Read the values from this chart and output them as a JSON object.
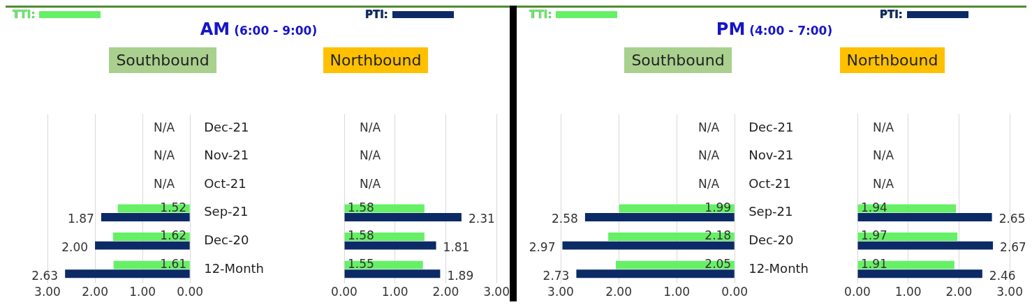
{
  "chart_data": [
    {
      "type": "bar",
      "orientation": "horizontal",
      "title": "AM (6:00 - 9:00)",
      "subtitle": "Southbound",
      "legend": "top",
      "grid": "x",
      "categories": [
        "Dec-21",
        "Nov-21",
        "Oct-21",
        "Sep-21",
        "Dec-20",
        "12-Month"
      ],
      "xlim": [
        3,
        0
      ],
      "xticks": [
        {
          "value": 3,
          "label": "3.00"
        },
        {
          "value": 2,
          "label": "2.00"
        },
        {
          "value": 1,
          "label": "1.00"
        },
        {
          "value": 0,
          "label": "0.00"
        }
      ],
      "series": [
        {
          "name": "TTI:",
          "color": "#66f066",
          "values": [
            null,
            null,
            null,
            1.52,
            1.62,
            1.61
          ],
          "value_labels": [
            "N/A",
            "N/A",
            "N/A",
            "1.52",
            "1.62",
            "1.61"
          ]
        },
        {
          "name": "PTI:",
          "color": "#0c2a66",
          "values": [
            null,
            null,
            null,
            1.87,
            2.0,
            2.63
          ],
          "value_labels": [
            null,
            null,
            null,
            "1.87",
            "2.00",
            "2.63"
          ]
        }
      ]
    },
    {
      "type": "bar",
      "orientation": "horizontal",
      "subtitle": "Northbound",
      "grid": "x",
      "categories": [
        null,
        null,
        null,
        null,
        null,
        null
      ],
      "xlim": [
        0,
        3
      ],
      "xticks": [
        {
          "value": 0,
          "label": "0.00"
        },
        {
          "value": 1,
          "label": "1.00"
        },
        {
          "value": 2,
          "label": "2.00"
        },
        {
          "value": 3,
          "label": "3.00"
        }
      ],
      "series": [
        {
          "color": "#66f066",
          "values": [
            null,
            null,
            null,
            1.58,
            1.58,
            1.55
          ],
          "value_labels": [
            "N/A",
            "N/A",
            "N/A",
            "1.58",
            "1.58",
            "1.55"
          ]
        },
        {
          "color": "#0c2a66",
          "values": [
            null,
            null,
            null,
            2.31,
            1.81,
            1.89
          ],
          "value_labels": [
            null,
            null,
            null,
            "2.31",
            "1.81",
            "1.89"
          ]
        }
      ]
    },
    {
      "type": "bar",
      "orientation": "horizontal",
      "title": "PM (4:00 - 7:00)",
      "subtitle": "Southbound",
      "legend": "top",
      "grid": "x",
      "categories": [
        "Dec-21",
        "Nov-21",
        "Oct-21",
        "Sep-21",
        "Dec-20",
        "12-Month"
      ],
      "xlim": [
        3,
        0
      ],
      "xticks": [
        {
          "value": 3,
          "label": "3.00"
        },
        {
          "value": 2,
          "label": "2.00"
        },
        {
          "value": 1,
          "label": "1.00"
        },
        {
          "value": 0,
          "label": "0.00"
        }
      ],
      "series": [
        {
          "name": "TTI:",
          "color": "#66f066",
          "values": [
            null,
            null,
            null,
            1.99,
            2.18,
            2.05
          ],
          "value_labels": [
            "N/A",
            "N/A",
            "N/A",
            "1.99",
            "2.18",
            "2.05"
          ]
        },
        {
          "name": "PTI:",
          "color": "#0c2a66",
          "values": [
            null,
            null,
            null,
            2.58,
            2.97,
            2.73
          ],
          "value_labels": [
            null,
            null,
            null,
            "2.58",
            "2.97",
            "2.73"
          ]
        }
      ]
    },
    {
      "type": "bar",
      "orientation": "horizontal",
      "subtitle": "Northbound",
      "grid": "x",
      "categories": [
        null,
        null,
        null,
        null,
        null,
        null
      ],
      "xlim": [
        0,
        3
      ],
      "xticks": [
        {
          "value": 0,
          "label": "0.00"
        },
        {
          "value": 1,
          "label": "1.00"
        },
        {
          "value": 2,
          "label": "2.00"
        },
        {
          "value": 3,
          "label": "3.00"
        }
      ],
      "series": [
        {
          "color": "#66f066",
          "values": [
            null,
            null,
            null,
            1.94,
            1.97,
            1.91
          ],
          "value_labels": [
            "N/A",
            "N/A",
            "N/A",
            "1.94",
            "1.97",
            "1.91"
          ]
        },
        {
          "color": "#0c2a66",
          "values": [
            null,
            null,
            null,
            2.65,
            2.67,
            2.46
          ],
          "value_labels": [
            null,
            null,
            null,
            "2.65",
            "2.67",
            "2.46"
          ]
        }
      ]
    }
  ]
}
